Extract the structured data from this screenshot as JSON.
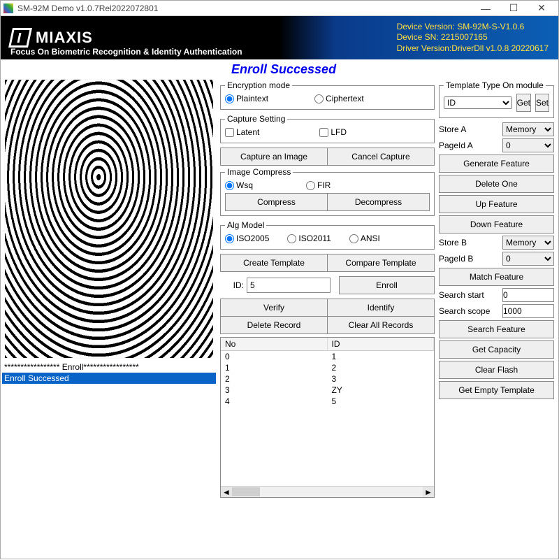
{
  "window": {
    "title": "SM-92M Demo v1.0.7Rel2022072801"
  },
  "branding": {
    "logo": "MIAXIS",
    "tagline": "Focus On Biometric Recognition & Identity Authentication",
    "device_version_label": "Device Version: SM-92M-S-V1.0.6",
    "device_sn_label": "Device SN: 2215007165",
    "driver_version_label": "Driver Version:DriverDll v1.0.8 20220617"
  },
  "status_message": "Enroll Successed",
  "log": {
    "line1": "***************** Enroll*****************",
    "line2": "Enroll Successed"
  },
  "encryption": {
    "legend": "Encryption mode",
    "plaintext": "Plaintext",
    "ciphertext": "Ciphertext",
    "selected": "plaintext"
  },
  "capture_setting": {
    "legend": "Capture Setting",
    "latent": "Latent",
    "lfd": "LFD"
  },
  "capture_buttons": {
    "capture": "Capture an Image",
    "cancel": "Cancel Capture"
  },
  "image_compress": {
    "legend": "Image Compress",
    "wsq": "Wsq",
    "fir": "FIR",
    "compress": "Compress",
    "decompress": "Decompress"
  },
  "alg_model": {
    "legend": "Alg Model",
    "iso2005": "ISO2005",
    "iso2011": "ISO2011",
    "ansi": "ANSI"
  },
  "template_buttons": {
    "create": "Create Template",
    "compare": "Compare Template"
  },
  "id_section": {
    "id_label": "ID:",
    "id_value": "5",
    "enroll": "Enroll",
    "verify": "Verify",
    "identify": "Identify",
    "delete_record": "Delete Record",
    "clear_all": "Clear All Records"
  },
  "table": {
    "col_no": "No",
    "col_id": "ID",
    "rows": [
      {
        "no": "0",
        "id": "1"
      },
      {
        "no": "1",
        "id": "2"
      },
      {
        "no": "2",
        "id": "3"
      },
      {
        "no": "3",
        "id": "ZY"
      },
      {
        "no": "4",
        "id": "5"
      }
    ]
  },
  "right_panel": {
    "template_type_legend": "Template Type On module",
    "template_type_value": "ID",
    "get": "Get",
    "set": "Set",
    "store_a_label": "Store A",
    "store_a_value": "Memory",
    "pageid_a_label": "PageId A",
    "pageid_a_value": "0",
    "generate_feature": "Generate Feature",
    "delete_one": "Delete One",
    "up_feature": "Up Feature",
    "down_feature": "Down Feature",
    "store_b_label": "Store B",
    "store_b_value": "Memory",
    "pageid_b_label": "PageId B",
    "pageid_b_value": "0",
    "match_feature": "Match Feature",
    "search_start_label": "Search start",
    "search_start_value": "0",
    "search_scope_label": "Search scope",
    "search_scope_value": "1000",
    "search_feature": "Search Feature",
    "get_capacity": "Get Capacity",
    "clear_flash": "Clear Flash",
    "get_empty_template": "Get Empty Template"
  }
}
